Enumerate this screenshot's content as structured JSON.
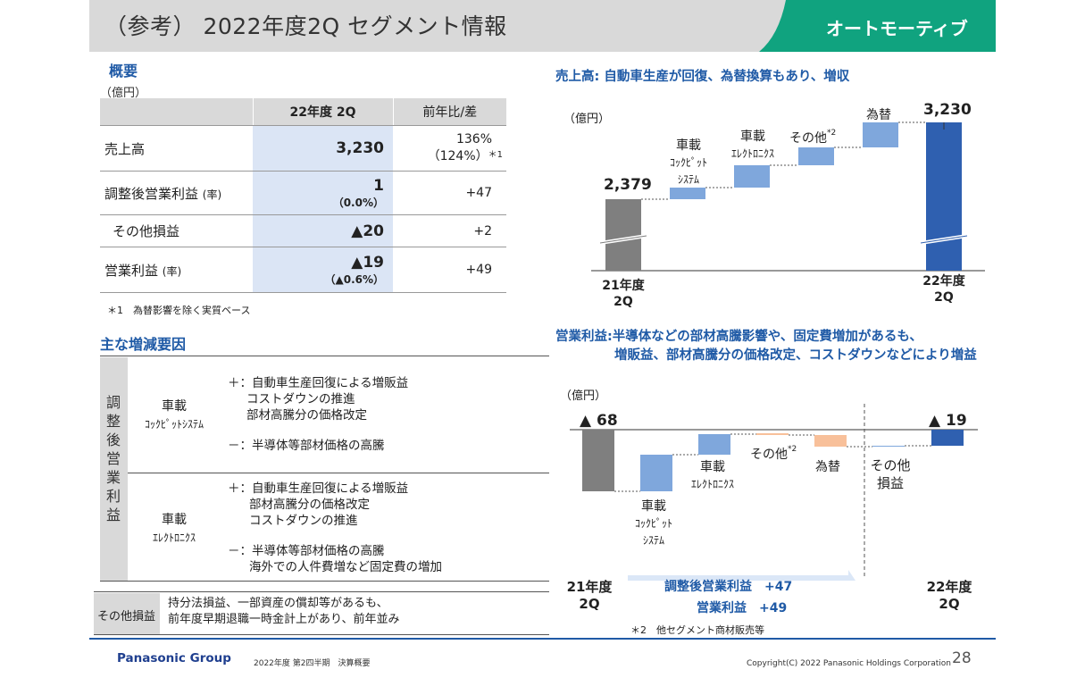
{
  "header": {
    "title": "（参考） 2022年度2Q セグメント情報",
    "segment": "オートモーティブ"
  },
  "overview": {
    "heading": "概要",
    "unit": "（億円）",
    "col_current": "22年度 2Q",
    "col_yoy": "前年比/差",
    "rows": [
      {
        "label": "売上高",
        "value": "3,230",
        "value_sub": "",
        "yoy": "136%",
        "yoy_sub": "（124%）",
        "yoy_note": "＊1"
      },
      {
        "label": "調整後営業利益",
        "label_sub": "(率)",
        "value": "1",
        "value_sub": "（0.0%）",
        "yoy": "+47"
      },
      {
        "label": "その他損益",
        "value": "▲20",
        "yoy": "+2"
      },
      {
        "label": "営業利益",
        "label_sub": "(率)",
        "value": "▲19",
        "value_sub": "（▲0.6%）",
        "yoy": "+49"
      }
    ],
    "footnote": "＊1　為替影響を除く実質ベース"
  },
  "factors": {
    "heading": "主な増減要因",
    "vertical_label": "調整後営業利益",
    "cockpit": {
      "cat": "車載",
      "cat_sub": "ｺｯｸﾋﾟｯﾄｼｽﾃﾑ",
      "plus_prefix": "＋：",
      "plus": [
        "自動車生産回復による増販益",
        "コストダウンの推進",
        "部材高騰分の価格改定"
      ],
      "minus_prefix": "－：",
      "minus": [
        "半導体等部材価格の高騰"
      ]
    },
    "electronics": {
      "cat": "車載",
      "cat_sub": "ｴﾚｸﾄﾛﾆｸｽ",
      "plus_prefix": "＋：",
      "plus": [
        "自動車生産回復による増販益",
        "部材高騰分の価格改定",
        "コストダウンの推進"
      ],
      "minus_prefix": "－：",
      "minus": [
        "半導体等部材価格の高騰",
        "海外での人件費増など固定費の増加"
      ]
    },
    "other": {
      "label": "その他損益",
      "lines": [
        "持分法損益、一部資産の償却等があるも、",
        "前年度早期退職一時金計上があり、前年並み"
      ]
    }
  },
  "sales_chart": {
    "title": "売上高: 自動車生産が回復、為替換算もあり、増収",
    "unit": "（億円）",
    "start_value": "2,379",
    "end_value": "3,230",
    "start_label": [
      "21年度",
      "2Q"
    ],
    "end_label": [
      "22年度",
      "2Q"
    ],
    "steps": [
      {
        "label": [
          "車載",
          "ｺｯｸﾋﾟｯﾄ",
          "ｼｽﾃﾑ"
        ]
      },
      {
        "label": [
          "車載",
          "ｴﾚｸﾄﾛﾆｸｽ"
        ]
      },
      {
        "label": [
          "その他"
        ],
        "note": "*2"
      },
      {
        "label": [
          "為替"
        ]
      }
    ]
  },
  "profit_chart": {
    "title_line1": "営業利益:半導体などの部材高騰影響や、固定費増加があるも、",
    "title_line2": "増販益、部材高騰分の価格改定、コストダウンなどにより増益",
    "unit": "（億円）",
    "start_value": "▲ 68",
    "end_value": "▲ 19",
    "start_label": [
      "21年度",
      "2Q"
    ],
    "end_label": [
      "22年度",
      "2Q"
    ],
    "steps": [
      {
        "label": [
          "車載",
          "ｺｯｸﾋﾟｯﾄ",
          "ｼｽﾃﾑ"
        ]
      },
      {
        "label": [
          "車載",
          "ｴﾚｸﾄﾛﾆｸｽ"
        ]
      },
      {
        "label": [
          "その他"
        ],
        "note": "*2"
      },
      {
        "label": [
          "為替"
        ]
      },
      {
        "label": [
          "その他",
          "損益"
        ]
      }
    ],
    "arrow1": "調整後営業利益　+47",
    "arrow2": "営業利益　+49",
    "footnote": "＊2　他セグメント商材販売等"
  },
  "colors": {
    "accent_green": "#10a37f",
    "blue_text": "#1f5aa6",
    "bar_gray": "#7f7f7f",
    "bar_light_blue": "#7fa7dc",
    "bar_dark_blue": "#2f60b0",
    "bar_orange": "#f8c09a",
    "arrow_blue": "#dbe7f7"
  },
  "footer": {
    "brand": "Panasonic Group",
    "doc": "2022年度 第2四半期　決算概要",
    "copyright": "Copyright(C) 2022 Panasonic Holdings Corporation",
    "page": "28"
  }
}
